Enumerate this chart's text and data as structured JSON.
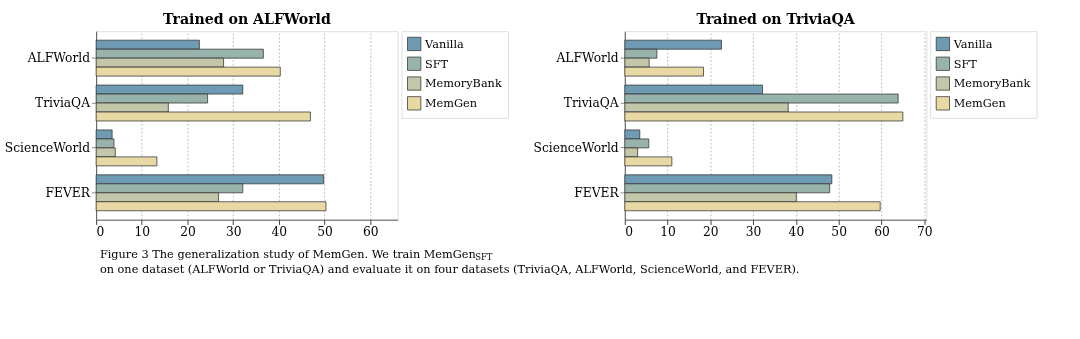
{
  "chart_data": [
    {
      "type": "bar",
      "orientation": "horizontal",
      "title": "Trained on ALFWorld",
      "categories": [
        "ALFWorld",
        "TriviaQA",
        "ScienceWorld",
        "FEVER"
      ],
      "series": [
        {
          "name": "Vanilla",
          "color": "#6f9ab3",
          "values": [
            22.6,
            32.1,
            3.5,
            49.8
          ]
        },
        {
          "name": "SFT",
          "color": "#97b3ab",
          "values": [
            36.6,
            24.4,
            3.9,
            32.1
          ]
        },
        {
          "name": "MemoryBank",
          "color": "#c3c6a9",
          "values": [
            27.9,
            15.8,
            4.2,
            26.8
          ]
        },
        {
          "name": "MemGen",
          "color": "#e8d9a4",
          "values": [
            40.3,
            46.9,
            13.3,
            50.3
          ]
        }
      ],
      "xlim": [
        0,
        66
      ],
      "xticks": [
        0,
        10,
        20,
        30,
        40,
        50,
        60
      ],
      "grid": "x",
      "legend": "top right",
      "annotations": [
        "Figure 3 The generalization study of MemGen. We train MemGen$_{SFT}$ on one dataset (ALFWorld or TriviaQA) and evaluate it on four datasets (TriviaQA, ALFWorld, ScienceWorld, and FEVER)."
      ]
    },
    {
      "type": "bar",
      "orientation": "horizontal",
      "title": "Trained on TriviaQA",
      "categories": [
        "ALFWorld",
        "TriviaQA",
        "ScienceWorld",
        "FEVER"
      ],
      "series": [
        {
          "name": "Vanilla",
          "color": "#6f9ab3",
          "values": [
            22.6,
            32.2,
            3.5,
            48.4
          ]
        },
        {
          "name": "SFT",
          "color": "#97b3ab",
          "values": [
            7.5,
            63.9,
            5.6,
            47.9
          ]
        },
        {
          "name": "MemoryBank",
          "color": "#c3c6a9",
          "values": [
            5.7,
            38.2,
            3.0,
            40.1
          ]
        },
        {
          "name": "MemGen",
          "color": "#e8d9a4",
          "values": [
            18.4,
            65.0,
            11.0,
            59.7
          ]
        }
      ],
      "xlim": [
        0,
        70.5
      ],
      "xticks": [
        0,
        10,
        20,
        30,
        40,
        50,
        60,
        70
      ],
      "grid": "x",
      "legend": "top right"
    }
  ]
}
